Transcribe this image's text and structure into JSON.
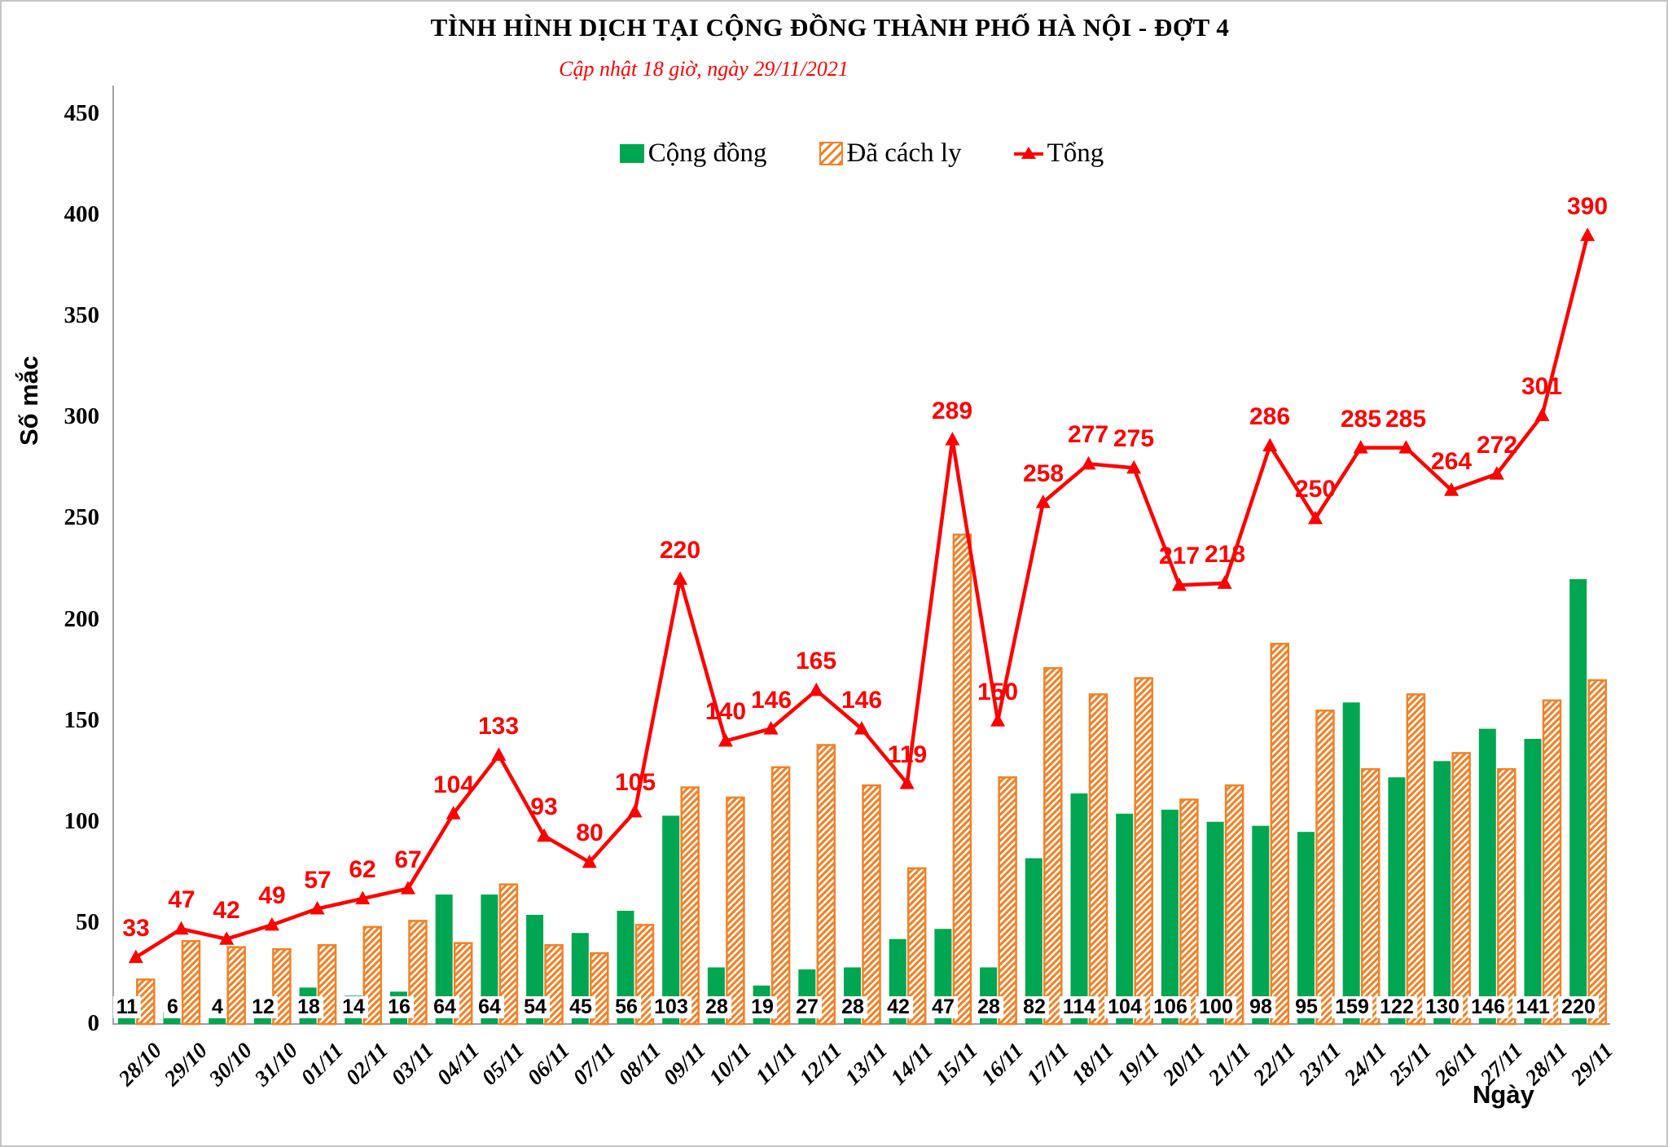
{
  "chart_data": {
    "type": "combo-bar-line",
    "title": "TÌNH HÌNH DỊCH TẠI CỘNG ĐỒNG THÀNH PHỐ HÀ NỘI - ĐỢT 4",
    "subtitle": "Cập nhật 18 giờ, ngày 29/11/2021",
    "ylabel": "Số mắc",
    "xlabel": "Ngày",
    "ylim": [
      0,
      450
    ],
    "yticks": [
      0,
      50,
      100,
      150,
      200,
      250,
      300,
      350,
      400,
      450
    ],
    "grid": false,
    "legend_position": "top-center",
    "plot_background": "#ffffff",
    "axis_color": "#a0a0a0",
    "categories": [
      "28/10",
      "29/10",
      "30/10",
      "31/10",
      "01/11",
      "02/11",
      "03/11",
      "04/11",
      "05/11",
      "06/11",
      "07/11",
      "08/11",
      "09/11",
      "10/11",
      "11/11",
      "12/11",
      "13/11",
      "14/11",
      "15/11",
      "16/11",
      "17/11",
      "18/11",
      "19/11",
      "20/11",
      "21/11",
      "22/11",
      "23/11",
      "24/11",
      "25/11",
      "26/11",
      "27/11",
      "28/11",
      "29/11"
    ],
    "series": [
      {
        "name": "Cộng đồng",
        "type": "bar",
        "style": "solid",
        "color": "#00A651",
        "value_label_position": "inside-base",
        "value_label_color": "#000000",
        "values": [
          11,
          6,
          4,
          12,
          18,
          14,
          16,
          64,
          64,
          54,
          45,
          56,
          103,
          28,
          19,
          27,
          28,
          42,
          47,
          28,
          82,
          114,
          104,
          106,
          100,
          98,
          95,
          159,
          122,
          130,
          146,
          141,
          220
        ]
      },
      {
        "name": "Đã cách ly",
        "type": "bar",
        "style": "hatched",
        "color": "#F08228",
        "values": [
          22,
          41,
          38,
          37,
          39,
          48,
          51,
          40,
          69,
          39,
          35,
          49,
          117,
          112,
          127,
          138,
          118,
          77,
          242,
          122,
          176,
          163,
          171,
          111,
          118,
          188,
          155,
          126,
          163,
          134,
          126,
          160,
          170
        ]
      },
      {
        "name": "Tổng",
        "type": "line",
        "marker": "triangle",
        "color": "#FE0000",
        "value_label_position": "above",
        "value_label_color": "#FE0000",
        "values": [
          33,
          47,
          42,
          49,
          57,
          62,
          67,
          104,
          133,
          93,
          80,
          105,
          220,
          140,
          146,
          165,
          146,
          119,
          289,
          150,
          258,
          277,
          275,
          217,
          218,
          286,
          250,
          285,
          285,
          264,
          272,
          301,
          390
        ]
      }
    ]
  }
}
